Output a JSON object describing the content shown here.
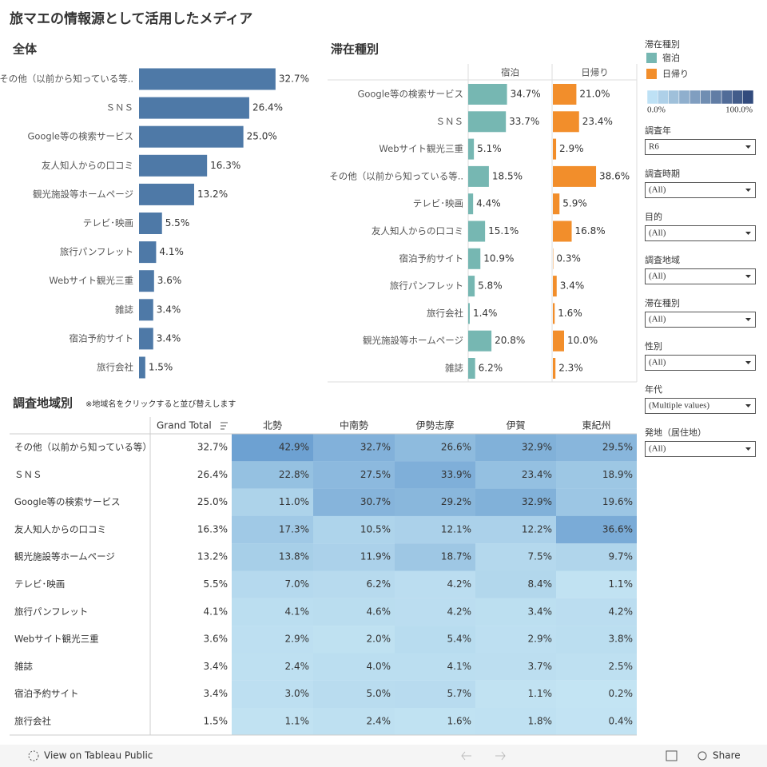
{
  "title": "旅マエの情報源として活用したメディア",
  "overall": {
    "type": "bar",
    "title": "全体",
    "categories": [
      "その他（以前から知っている等..",
      "ＳＮＳ",
      "Google等の検索サービス",
      "友人知人からの口コミ",
      "観光施設等ホームページ",
      "テレビ･映画",
      "旅行パンフレット",
      "Webサイト観光三重",
      "雑誌",
      "宿泊予約サイト",
      "旅行会社"
    ],
    "values": [
      32.7,
      26.4,
      25.0,
      16.3,
      13.2,
      5.5,
      4.1,
      3.6,
      3.4,
      3.4,
      1.5
    ],
    "value_labels": [
      "32.7%",
      "26.4%",
      "25.0%",
      "16.3%",
      "13.2%",
      "5.5%",
      "4.1%",
      "3.6%",
      "3.4%",
      "3.4%",
      "1.5%"
    ],
    "color": "#4e79a7",
    "xlim": [
      0,
      40
    ]
  },
  "by_stay": {
    "type": "bar",
    "title": "滞在種別",
    "categories": [
      "Google等の検索サービス",
      "ＳＮＳ",
      "Webサイト観光三重",
      "その他（以前から知っている等..",
      "テレビ･映画",
      "友人知人からの口コミ",
      "宿泊予約サイト",
      "旅行パンフレット",
      "旅行会社",
      "観光施設等ホームページ",
      "雑誌"
    ],
    "series": [
      {
        "name": "宿泊",
        "color": "#76b7b2",
        "values": [
          34.7,
          33.7,
          5.1,
          18.5,
          4.4,
          15.1,
          10.9,
          5.8,
          1.4,
          20.8,
          6.2
        ],
        "value_labels": [
          "34.7%",
          "33.7%",
          "5.1%",
          "18.5%",
          "4.4%",
          "15.1%",
          "10.9%",
          "5.8%",
          "1.4%",
          "20.8%",
          "6.2%"
        ]
      },
      {
        "name": "日帰り",
        "color": "#f28e2b",
        "values": [
          21.0,
          23.4,
          2.9,
          38.6,
          5.9,
          16.8,
          0.3,
          3.4,
          1.6,
          10.0,
          2.3
        ],
        "value_labels": [
          "21.0%",
          "23.4%",
          "2.9%",
          "38.6%",
          "5.9%",
          "16.8%",
          "0.3%",
          "3.4%",
          "1.6%",
          "10.0%",
          "2.3%"
        ]
      }
    ],
    "xlim": [
      0,
      75
    ]
  },
  "legend": {
    "title": "滞在種別",
    "min_label": "0.0%",
    "max_label": "100.0%"
  },
  "filters": [
    {
      "label": "調査年",
      "value": "R6"
    },
    {
      "label": "調査時期",
      "value": "(All)"
    },
    {
      "label": "目的",
      "value": "(All)"
    },
    {
      "label": "調査地域",
      "value": "(All)"
    },
    {
      "label": "滞在種別",
      "value": "(All)"
    },
    {
      "label": "性別",
      "value": "(All)"
    },
    {
      "label": "年代",
      "value": "(Multiple values)"
    },
    {
      "label": "発地（居住地）",
      "value": "(All)"
    }
  ],
  "by_region": {
    "title": "調査地域別",
    "note": "※地域名をクリックすると並び替えします",
    "columns": [
      "Grand Total",
      "北勢",
      "中南勢",
      "伊勢志摩",
      "伊賀",
      "東紀州"
    ],
    "rows": [
      {
        "label": "その他（以前から知っている等）",
        "cells": [
          "32.7%",
          "42.9%",
          "32.7%",
          "26.6%",
          "32.9%",
          "29.5%"
        ]
      },
      {
        "label": "ＳＮＳ",
        "cells": [
          "26.4%",
          "22.8%",
          "27.5%",
          "33.9%",
          "23.4%",
          "18.9%"
        ]
      },
      {
        "label": "Google等の検索サービス",
        "cells": [
          "25.0%",
          "11.0%",
          "30.7%",
          "29.2%",
          "32.9%",
          "19.6%"
        ]
      },
      {
        "label": "友人知人からの口コミ",
        "cells": [
          "16.3%",
          "17.3%",
          "10.5%",
          "12.1%",
          "12.2%",
          "36.6%"
        ]
      },
      {
        "label": "観光施設等ホームページ",
        "cells": [
          "13.2%",
          "13.8%",
          "11.9%",
          "18.7%",
          "7.5%",
          "9.7%"
        ]
      },
      {
        "label": "テレビ･映画",
        "cells": [
          "5.5%",
          "7.0%",
          "6.2%",
          "4.2%",
          "8.4%",
          "1.1%"
        ]
      },
      {
        "label": "旅行パンフレット",
        "cells": [
          "4.1%",
          "4.1%",
          "4.6%",
          "4.2%",
          "3.4%",
          "4.2%"
        ]
      },
      {
        "label": "Webサイト観光三重",
        "cells": [
          "3.6%",
          "2.9%",
          "2.0%",
          "5.4%",
          "2.9%",
          "3.8%"
        ]
      },
      {
        "label": "雑誌",
        "cells": [
          "3.4%",
          "2.4%",
          "4.0%",
          "4.1%",
          "3.7%",
          "2.5%"
        ]
      },
      {
        "label": "宿泊予約サイト",
        "cells": [
          "3.4%",
          "3.0%",
          "5.0%",
          "5.7%",
          "1.1%",
          "0.2%"
        ]
      },
      {
        "label": "旅行会社",
        "cells": [
          "1.5%",
          "1.1%",
          "2.4%",
          "1.6%",
          "1.8%",
          "0.4%"
        ]
      }
    ]
  },
  "footer": {
    "link": "View on Tableau Public",
    "share": "Share"
  }
}
